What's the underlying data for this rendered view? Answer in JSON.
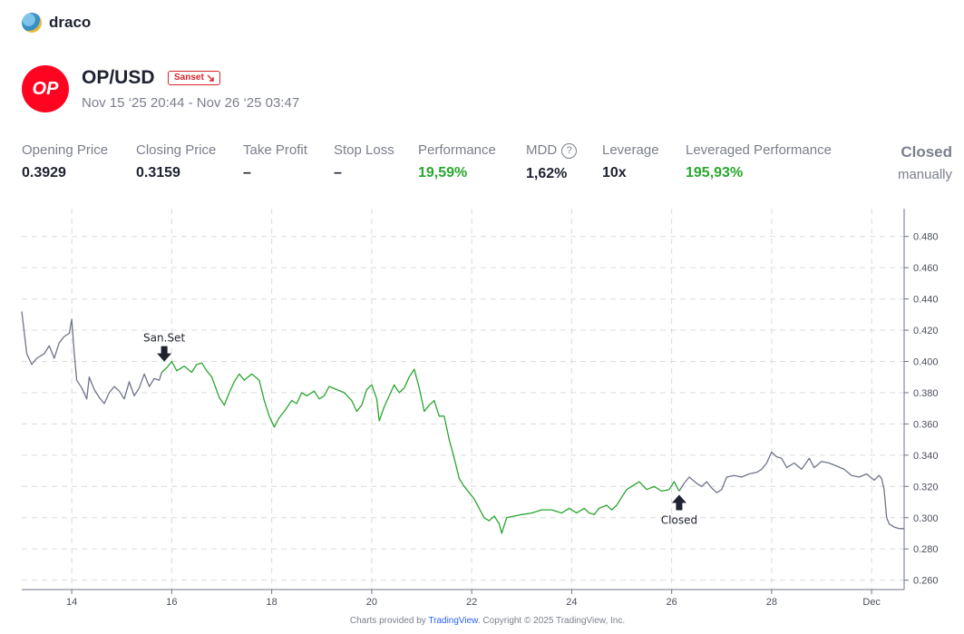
{
  "brand": {
    "name": "draco"
  },
  "asset": {
    "logo_text": "OP",
    "pair": "OP/USD",
    "badge": "Sanset",
    "badge_icon": "arrow-down-right-icon",
    "date_range": "Nov 15 ‘25 20:44 - Nov 26 ‘25 03:47"
  },
  "stats": [
    {
      "label": "Opening Price",
      "value": "0.3929",
      "color": "default"
    },
    {
      "label": "Closing Price",
      "value": "0.3159",
      "color": "default"
    },
    {
      "label": "Take Profit",
      "value": "–",
      "color": "default"
    },
    {
      "label": "Stop Loss",
      "value": "–",
      "color": "default"
    },
    {
      "label": "Performance",
      "value": "19,59%",
      "color": "green"
    },
    {
      "label": "MDD",
      "value": "1,62%",
      "color": "default"
    },
    {
      "label": "Leverage",
      "value": "10x",
      "color": "default"
    },
    {
      "label": "Leveraged Performance",
      "value": "195,93%",
      "color": "green"
    }
  ],
  "status": {
    "line1": "Closed",
    "line2": "manually"
  },
  "footer": {
    "prefix": "Charts provided by ",
    "link": "TradingView",
    "suffix": ". Copyright © 2025 TradingView, Inc."
  },
  "colors": {
    "trade_line": "#2aa52f",
    "context_line": "#6f7589",
    "green": "#29a82f",
    "op_red": "#ff0420",
    "badge_red": "#d6262b"
  },
  "chart_data": {
    "type": "line",
    "x_unit": "days (Nov)",
    "xlim": [
      13.0,
      30.65
    ],
    "ylim": [
      0.254,
      0.492
    ],
    "y_ticks": [
      "0.480",
      "0.460",
      "0.440",
      "0.420",
      "0.400",
      "0.380",
      "0.360",
      "0.340",
      "0.320",
      "0.300",
      "0.280",
      "0.260"
    ],
    "x_ticks": [
      {
        "x": 14,
        "label": "14"
      },
      {
        "x": 16,
        "label": "16"
      },
      {
        "x": 18,
        "label": "18"
      },
      {
        "x": 20,
        "label": "20"
      },
      {
        "x": 22,
        "label": "22"
      },
      {
        "x": 24,
        "label": "24"
      },
      {
        "x": 26,
        "label": "26"
      },
      {
        "x": 28,
        "label": "28"
      },
      {
        "x": 30,
        "label": "Dec"
      }
    ],
    "grid": true,
    "trade_start": 15.8,
    "trade_end": 26.15,
    "series": [
      {
        "values": [
          [
            13.0,
            0.432
          ],
          [
            13.1,
            0.405
          ],
          [
            13.2,
            0.398
          ],
          [
            13.3,
            0.402
          ],
          [
            13.45,
            0.405
          ],
          [
            13.55,
            0.41
          ],
          [
            13.65,
            0.402
          ],
          [
            13.75,
            0.412
          ],
          [
            13.85,
            0.416
          ],
          [
            13.95,
            0.418
          ],
          [
            14.0,
            0.427
          ],
          [
            14.05,
            0.405
          ],
          [
            14.1,
            0.388
          ],
          [
            14.2,
            0.383
          ],
          [
            14.3,
            0.376
          ],
          [
            14.35,
            0.39
          ],
          [
            14.45,
            0.382
          ],
          [
            14.55,
            0.377
          ],
          [
            14.65,
            0.373
          ],
          [
            14.75,
            0.38
          ],
          [
            14.85,
            0.384
          ],
          [
            14.95,
            0.381
          ],
          [
            15.05,
            0.376
          ],
          [
            15.15,
            0.387
          ],
          [
            15.25,
            0.378
          ],
          [
            15.35,
            0.383
          ],
          [
            15.45,
            0.392
          ],
          [
            15.55,
            0.384
          ],
          [
            15.65,
            0.389
          ],
          [
            15.75,
            0.388
          ],
          [
            15.8,
            0.393
          ],
          [
            15.9,
            0.396
          ],
          [
            16.0,
            0.4
          ],
          [
            16.1,
            0.394
          ],
          [
            16.25,
            0.397
          ],
          [
            16.4,
            0.393
          ],
          [
            16.5,
            0.398
          ],
          [
            16.6,
            0.399
          ],
          [
            16.7,
            0.394
          ],
          [
            16.8,
            0.39
          ],
          [
            16.95,
            0.377
          ],
          [
            17.05,
            0.372
          ],
          [
            17.15,
            0.38
          ],
          [
            17.25,
            0.387
          ],
          [
            17.35,
            0.392
          ],
          [
            17.45,
            0.388
          ],
          [
            17.6,
            0.392
          ],
          [
            17.75,
            0.388
          ],
          [
            17.85,
            0.375
          ],
          [
            17.95,
            0.365
          ],
          [
            18.05,
            0.358
          ],
          [
            18.15,
            0.364
          ],
          [
            18.25,
            0.368
          ],
          [
            18.4,
            0.375
          ],
          [
            18.5,
            0.373
          ],
          [
            18.6,
            0.38
          ],
          [
            18.7,
            0.378
          ],
          [
            18.85,
            0.381
          ],
          [
            18.95,
            0.376
          ],
          [
            19.05,
            0.378
          ],
          [
            19.15,
            0.384
          ],
          [
            19.3,
            0.382
          ],
          [
            19.45,
            0.38
          ],
          [
            19.6,
            0.375
          ],
          [
            19.7,
            0.368
          ],
          [
            19.8,
            0.372
          ],
          [
            19.9,
            0.382
          ],
          [
            20.0,
            0.385
          ],
          [
            20.1,
            0.376
          ],
          [
            20.15,
            0.362
          ],
          [
            20.25,
            0.371
          ],
          [
            20.35,
            0.378
          ],
          [
            20.45,
            0.385
          ],
          [
            20.55,
            0.38
          ],
          [
            20.65,
            0.383
          ],
          [
            20.75,
            0.39
          ],
          [
            20.85,
            0.395
          ],
          [
            20.95,
            0.383
          ],
          [
            21.05,
            0.368
          ],
          [
            21.15,
            0.372
          ],
          [
            21.25,
            0.375
          ],
          [
            21.35,
            0.365
          ],
          [
            21.45,
            0.365
          ],
          [
            21.55,
            0.35
          ],
          [
            21.65,
            0.338
          ],
          [
            21.75,
            0.325
          ],
          [
            21.85,
            0.32
          ],
          [
            21.95,
            0.316
          ],
          [
            22.05,
            0.312
          ],
          [
            22.15,
            0.306
          ],
          [
            22.25,
            0.3
          ],
          [
            22.35,
            0.298
          ],
          [
            22.45,
            0.301
          ],
          [
            22.55,
            0.296
          ],
          [
            22.6,
            0.29
          ],
          [
            22.7,
            0.3
          ],
          [
            22.85,
            0.301
          ],
          [
            23.0,
            0.302
          ],
          [
            23.2,
            0.303
          ],
          [
            23.4,
            0.305
          ],
          [
            23.6,
            0.305
          ],
          [
            23.8,
            0.303
          ],
          [
            23.95,
            0.306
          ],
          [
            24.1,
            0.303
          ],
          [
            24.25,
            0.306
          ],
          [
            24.35,
            0.303
          ],
          [
            24.45,
            0.302
          ],
          [
            24.55,
            0.306
          ],
          [
            24.7,
            0.308
          ],
          [
            24.8,
            0.305
          ],
          [
            24.9,
            0.308
          ],
          [
            25.0,
            0.313
          ],
          [
            25.1,
            0.318
          ],
          [
            25.2,
            0.32
          ],
          [
            25.35,
            0.323
          ],
          [
            25.5,
            0.318
          ],
          [
            25.65,
            0.32
          ],
          [
            25.8,
            0.317
          ],
          [
            25.95,
            0.318
          ],
          [
            26.05,
            0.323
          ],
          [
            26.15,
            0.317
          ],
          [
            26.25,
            0.322
          ],
          [
            26.35,
            0.326
          ],
          [
            26.5,
            0.322
          ],
          [
            26.6,
            0.32
          ],
          [
            26.7,
            0.323
          ],
          [
            26.8,
            0.319
          ],
          [
            26.9,
            0.316
          ],
          [
            27.0,
            0.318
          ],
          [
            27.1,
            0.326
          ],
          [
            27.25,
            0.327
          ],
          [
            27.4,
            0.326
          ],
          [
            27.55,
            0.328
          ],
          [
            27.7,
            0.329
          ],
          [
            27.8,
            0.331
          ],
          [
            27.9,
            0.335
          ],
          [
            28.0,
            0.342
          ],
          [
            28.1,
            0.339
          ],
          [
            28.2,
            0.338
          ],
          [
            28.3,
            0.332
          ],
          [
            28.45,
            0.335
          ],
          [
            28.6,
            0.331
          ],
          [
            28.75,
            0.338
          ],
          [
            28.85,
            0.332
          ],
          [
            29.0,
            0.336
          ],
          [
            29.15,
            0.335
          ],
          [
            29.3,
            0.333
          ],
          [
            29.45,
            0.331
          ],
          [
            29.6,
            0.327
          ],
          [
            29.75,
            0.326
          ],
          [
            29.9,
            0.328
          ],
          [
            30.05,
            0.324
          ],
          [
            30.15,
            0.327
          ],
          [
            30.2,
            0.325
          ],
          [
            30.25,
            0.318
          ],
          [
            30.3,
            0.3
          ],
          [
            30.35,
            0.296
          ],
          [
            30.45,
            0.294
          ],
          [
            30.55,
            0.293
          ],
          [
            30.65,
            0.293
          ]
        ]
      }
    ],
    "annotations": [
      {
        "text": "San.Set",
        "x": 15.85,
        "y": 0.397,
        "position": "above",
        "arrow": "arrow-down-icon"
      },
      {
        "text": "Closed",
        "x": 26.15,
        "y": 0.317,
        "position": "below",
        "arrow": "arrow-up-icon"
      }
    ]
  }
}
